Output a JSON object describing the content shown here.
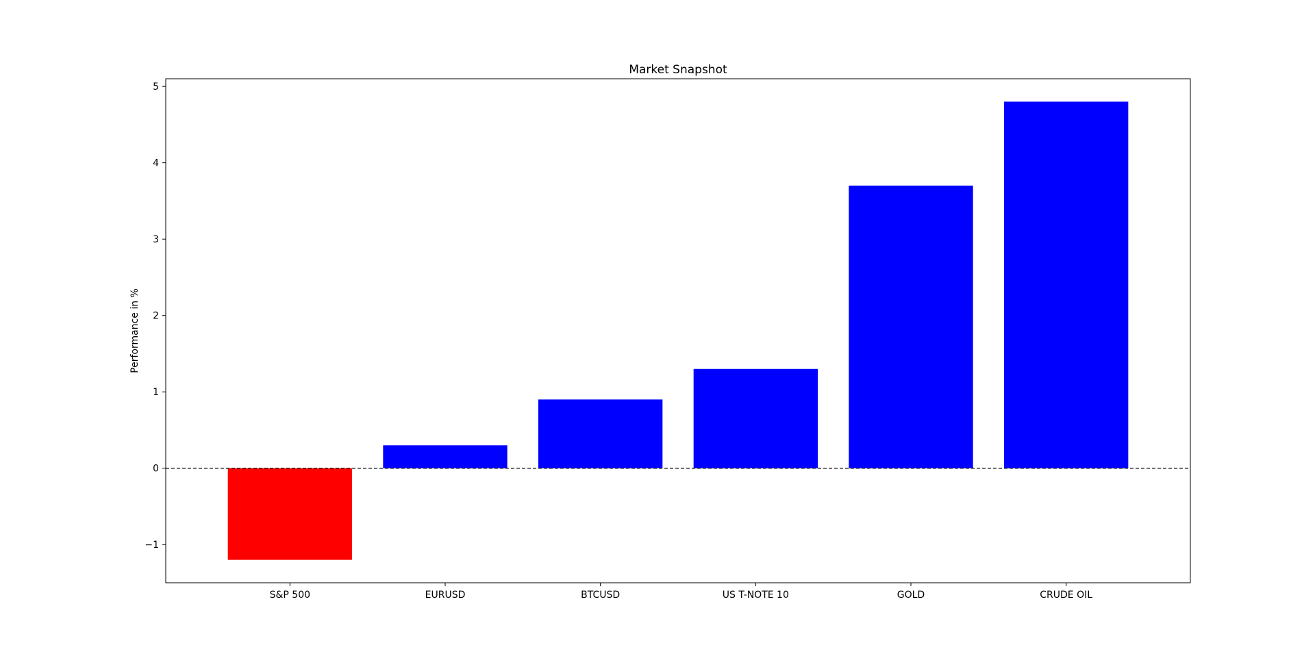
{
  "chart_data": {
    "type": "bar",
    "title": "Market Snapshot",
    "xlabel": "",
    "ylabel": "Performance in %",
    "categories": [
      "S&P 500",
      "EURUSD",
      "BTCUSD",
      "US T-NOTE 10",
      "GOLD",
      "CRUDE OIL"
    ],
    "values": [
      -1.2,
      0.3,
      0.9,
      1.3,
      3.7,
      4.8
    ],
    "bar_colors": [
      "#ff0000",
      "#0000ff",
      "#0000ff",
      "#0000ff",
      "#0000ff",
      "#0000ff"
    ],
    "ylim": [
      -1.5,
      5.1
    ],
    "yticks": [
      -1,
      0,
      1,
      2,
      3,
      4,
      5
    ],
    "ytick_labels": [
      "−1",
      "0",
      "1",
      "2",
      "3",
      "4",
      "5"
    ],
    "zero_line": {
      "style": "dashed",
      "color": "#000000"
    },
    "grid": false,
    "legend": "none"
  }
}
